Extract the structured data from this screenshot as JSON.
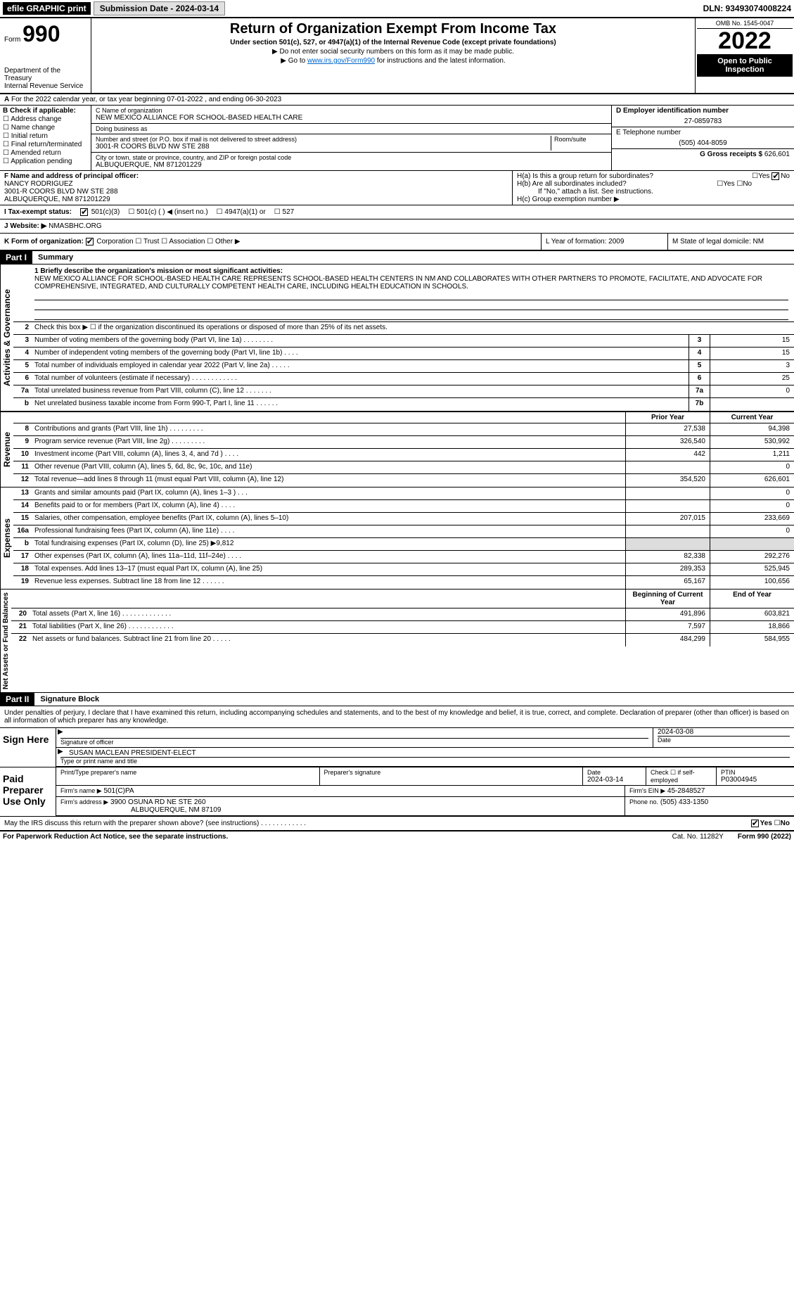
{
  "topbar": {
    "efile": "efile GRAPHIC print",
    "submission_label": "Submission Date - 2024-03-14",
    "dln": "DLN: 93493074008224"
  },
  "header": {
    "form_word": "Form",
    "form_num": "990",
    "title": "Return of Organization Exempt From Income Tax",
    "subtitle": "Under section 501(c), 527, or 4947(a)(1) of the Internal Revenue Code (except private foundations)",
    "note1": "▶ Do not enter social security numbers on this form as it may be made public.",
    "note2_pre": "▶ Go to ",
    "note2_link": "www.irs.gov/Form990",
    "note2_post": " for instructions and the latest information.",
    "dept": "Department of the Treasury",
    "irs": "Internal Revenue Service",
    "omb": "OMB No. 1545-0047",
    "year": "2022",
    "open": "Open to Public Inspection"
  },
  "line_a": "For the 2022 calendar year, or tax year beginning 07-01-2022     , and ending 06-30-2023",
  "col_b": {
    "label": "B Check if applicable:",
    "opts": [
      "Address change",
      "Name change",
      "Initial return",
      "Final return/terminated",
      "Amended return",
      "Application pending"
    ]
  },
  "col_c": {
    "name_label": "C Name of organization",
    "name": "NEW MEXICO ALLIANCE FOR SCHOOL-BASED HEALTH CARE",
    "dba_label": "Doing business as",
    "dba": "",
    "street_label": "Number and street (or P.O. box if mail is not delivered to street address)",
    "room_label": "Room/suite",
    "street": "3001-R COORS BLVD NW STE 288",
    "city_label": "City or town, state or province, country, and ZIP or foreign postal code",
    "city": "ALBUQUERQUE, NM  871201229"
  },
  "col_de": {
    "d_label": "D Employer identification number",
    "d_val": "27-0859783",
    "e_label": "E Telephone number",
    "e_val": "(505) 404-8059",
    "g_label": "G Gross receipts $",
    "g_val": "626,601"
  },
  "fgh": {
    "f_label": "F Name and address of principal officer:",
    "f_name": "NANCY RODRIGUEZ",
    "f_addr1": "3001-R COORS BLVD NW STE 288",
    "f_addr2": "ALBUQUERQUE, NM  871201229",
    "h_a": "H(a)  Is this a group return for subordinates?",
    "h_b": "H(b)  Are all subordinates included?",
    "h_b_note": "If \"No,\" attach a list. See instructions.",
    "h_c": "H(c)  Group exemption number ▶",
    "yes": "Yes",
    "no": "No"
  },
  "status": {
    "i_label": "I   Tax-exempt status:",
    "o1": "501(c)(3)",
    "o2": "501(c) (   ) ◀ (insert no.)",
    "o3": "4947(a)(1) or",
    "o4": "527"
  },
  "website": {
    "label": "J   Website: ▶",
    "val": "NMASBHC.ORG"
  },
  "k_row": {
    "k": "K Form of organization:",
    "opts": [
      "Corporation",
      "Trust",
      "Association",
      "Other ▶"
    ],
    "l": "L Year of formation: 2009",
    "m": "M State of legal domicile: NM"
  },
  "part1": {
    "hdr": "Part I",
    "title": "Summary"
  },
  "mission": {
    "label": "1  Briefly describe the organization's mission or most significant activities:",
    "text": "NEW MEXICO ALLIANCE FOR SCHOOL-BASED HEALTH CARE REPRESENTS SCHOOL-BASED HEALTH CENTERS IN NM AND COLLABORATES WITH OTHER PARTNERS TO PROMOTE, FACILITATE, AND ADVOCATE FOR COMPREHENSIVE, INTEGRATED, AND CULTURALLY COMPETENT HEALTH CARE, INCLUDING HEALTH EDUCATION IN SCHOOLS."
  },
  "gov_lines": [
    {
      "n": "2",
      "d": "Check this box ▶ ☐ if the organization discontinued its operations or disposed of more than 25% of its net assets."
    },
    {
      "n": "3",
      "d": "Number of voting members of the governing body (Part VI, line 1a)   .    .    .    .    .    .    .    .",
      "b": "3",
      "v": "15"
    },
    {
      "n": "4",
      "d": "Number of independent voting members of the governing body (Part VI, line 1b)   .    .    .    .",
      "b": "4",
      "v": "15"
    },
    {
      "n": "5",
      "d": "Total number of individuals employed in calendar year 2022 (Part V, line 2a)   .    .    .    .    .",
      "b": "5",
      "v": "3"
    },
    {
      "n": "6",
      "d": "Total number of volunteers (estimate if necessary)   .    .    .    .    .    .    .    .    .    .    .    .",
      "b": "6",
      "v": "25"
    },
    {
      "n": "7a",
      "d": "Total unrelated business revenue from Part VIII, column (C), line 12   .    .    .    .    .    .    .",
      "b": "7a",
      "v": "0"
    },
    {
      "n": "b",
      "d": "Net unrelated business taxable income from Form 990-T, Part I, line 11   .    .    .    .    .    .",
      "b": "7b",
      "v": ""
    }
  ],
  "yearhdr": {
    "prior": "Prior Year",
    "current": "Current Year"
  },
  "rev_lines": [
    {
      "n": "8",
      "d": "Contributions and grants (Part VIII, line 1h)   .    .    .    .    .    .    .    .    .",
      "p": "27,538",
      "c": "94,398"
    },
    {
      "n": "9",
      "d": "Program service revenue (Part VIII, line 2g)   .    .    .    .    .    .    .    .    .",
      "p": "326,540",
      "c": "530,992"
    },
    {
      "n": "10",
      "d": "Investment income (Part VIII, column (A), lines 3, 4, and 7d )   .    .    .    .",
      "p": "442",
      "c": "1,211"
    },
    {
      "n": "11",
      "d": "Other revenue (Part VIII, column (A), lines 5, 6d, 8c, 9c, 10c, and 11e)",
      "p": "",
      "c": "0"
    },
    {
      "n": "12",
      "d": "Total revenue—add lines 8 through 11 (must equal Part VIII, column (A), line 12)",
      "p": "354,520",
      "c": "626,601"
    }
  ],
  "exp_lines": [
    {
      "n": "13",
      "d": "Grants and similar amounts paid (Part IX, column (A), lines 1–3 )   .    .    .",
      "p": "",
      "c": "0"
    },
    {
      "n": "14",
      "d": "Benefits paid to or for members (Part IX, column (A), line 4)   .    .    .    .",
      "p": "",
      "c": "0"
    },
    {
      "n": "15",
      "d": "Salaries, other compensation, employee benefits (Part IX, column (A), lines 5–10)",
      "p": "207,015",
      "c": "233,669"
    },
    {
      "n": "16a",
      "d": "Professional fundraising fees (Part IX, column (A), line 11e)   .    .    .    .",
      "p": "",
      "c": "0"
    },
    {
      "n": "b",
      "d": "Total fundraising expenses (Part IX, column (D), line 25) ▶9,812",
      "shade": true
    },
    {
      "n": "17",
      "d": "Other expenses (Part IX, column (A), lines 11a–11d, 11f–24e)   .    .    .    .",
      "p": "82,338",
      "c": "292,276"
    },
    {
      "n": "18",
      "d": "Total expenses. Add lines 13–17 (must equal Part IX, column (A), line 25)",
      "p": "289,353",
      "c": "525,945"
    },
    {
      "n": "19",
      "d": "Revenue less expenses. Subtract line 18 from line 12   .    .    .    .    .    .",
      "p": "65,167",
      "c": "100,656"
    }
  ],
  "net_hdr": {
    "begin": "Beginning of Current Year",
    "end": "End of Year"
  },
  "net_lines": [
    {
      "n": "20",
      "d": "Total assets (Part X, line 16)   .    .    .    .    .    .    .    .    .    .    .    .    .",
      "p": "491,896",
      "c": "603,821"
    },
    {
      "n": "21",
      "d": "Total liabilities (Part X, line 26)   .    .    .    .    .    .    .    .    .    .    .    .",
      "p": "7,597",
      "c": "18,866"
    },
    {
      "n": "22",
      "d": "Net assets or fund balances. Subtract line 21 from line 20   .    .    .    .    .",
      "p": "484,299",
      "c": "584,955"
    }
  ],
  "part2": {
    "hdr": "Part II",
    "title": "Signature Block"
  },
  "decl": "Under penalties of perjury, I declare that I have examined this return, including accompanying schedules and statements, and to the best of my knowledge and belief, it is true, correct, and complete. Declaration of preparer (other than officer) is based on all information of which preparer has any knowledge.",
  "sign": {
    "label": "Sign Here",
    "sig_of_officer": "Signature of officer",
    "date": "2024-03-08",
    "date_label": "Date",
    "name": "SUSAN MACLEAN  PRESIDENT-ELECT",
    "name_label": "Type or print name and title"
  },
  "paid": {
    "label": "Paid Preparer Use Only",
    "h1": "Print/Type preparer's name",
    "h2": "Preparer's signature",
    "h3_label": "Date",
    "h3": "2024-03-14",
    "h4": "Check ☐ if self-employed",
    "h5_label": "PTIN",
    "h5": "P03004945",
    "firm_name_label": "Firm's name    ▶",
    "firm_name": "501(C)PA",
    "firm_ein_label": "Firm's EIN ▶",
    "firm_ein": "45-2848527",
    "firm_addr_label": "Firm's address ▶",
    "firm_addr1": "3900 OSUNA RD NE STE 260",
    "firm_addr2": "ALBUQUERQUE, NM  87109",
    "phone_label": "Phone no.",
    "phone": "(505) 433-1350"
  },
  "discuss": "May the IRS discuss this return with the preparer shown above? (see instructions)   .    .    .    .    .    .    .    .    .    .    .    .",
  "footer": {
    "left": "For Paperwork Reduction Act Notice, see the separate instructions.",
    "mid": "Cat. No. 11282Y",
    "right": "Form 990 (2022)"
  },
  "side": {
    "gov": "Activities & Governance",
    "rev": "Revenue",
    "exp": "Expenses",
    "net": "Net Assets or Fund Balances"
  }
}
